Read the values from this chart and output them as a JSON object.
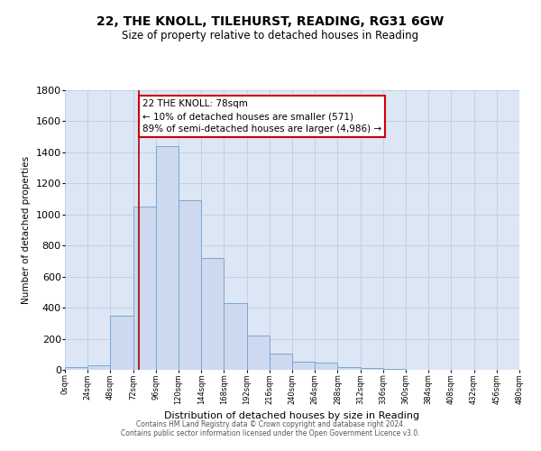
{
  "title": "22, THE KNOLL, TILEHURST, READING, RG31 6GW",
  "subtitle": "Size of property relative to detached houses in Reading",
  "xlabel": "Distribution of detached houses by size in Reading",
  "ylabel": "Number of detached properties",
  "bin_edges": [
    0,
    24,
    48,
    72,
    96,
    120,
    144,
    168,
    192,
    216,
    240,
    264,
    288,
    312,
    336,
    360,
    384,
    408,
    432,
    456,
    480
  ],
  "bar_heights": [
    20,
    30,
    350,
    1050,
    1440,
    1090,
    720,
    430,
    220,
    105,
    55,
    45,
    20,
    10,
    5,
    2,
    1,
    0,
    0,
    0
  ],
  "bar_color": "#ccd9ee",
  "bar_edge_color": "#7ba7d4",
  "property_size": 78,
  "vline_color": "#aa0000",
  "annotation_box_facecolor": "#ffffff",
  "annotation_box_edgecolor": "#cc0000",
  "annotation_text_line1": "22 THE KNOLL: 78sqm",
  "annotation_text_line2": "← 10% of detached houses are smaller (571)",
  "annotation_text_line3": "89% of semi-detached houses are larger (4,986) →",
  "ylim": [
    0,
    1800
  ],
  "xlim": [
    0,
    480
  ],
  "plot_bg_color": "#dce6f4",
  "grid_color": "#b8c8dc",
  "yticks": [
    0,
    200,
    400,
    600,
    800,
    1000,
    1200,
    1400,
    1600,
    1800
  ],
  "footer_line1": "Contains HM Land Registry data © Crown copyright and database right 2024.",
  "footer_line2": "Contains public sector information licensed under the Open Government Licence v3.0."
}
